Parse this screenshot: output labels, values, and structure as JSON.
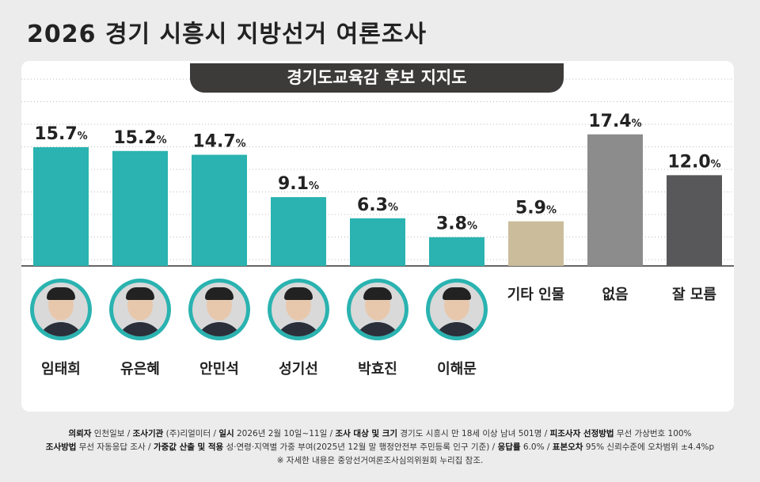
{
  "title": "2026 경기 시흥시 지방선거 여론조사",
  "subtitle": "경기도교육감 후보 지지도",
  "chart_data": {
    "type": "bar",
    "title": "경기도교육감 후보 지지도",
    "categories": [
      "임태희",
      "유은혜",
      "안민석",
      "성기선",
      "박효진",
      "이해문",
      "기타 인물",
      "없음",
      "잘 모름"
    ],
    "values": [
      15.7,
      15.2,
      14.7,
      9.1,
      6.3,
      3.8,
      5.9,
      17.4,
      12.0
    ],
    "unit": "%",
    "colors": [
      "#2ab3b0",
      "#2ab3b0",
      "#2ab3b0",
      "#2ab3b0",
      "#2ab3b0",
      "#2ab3b0",
      "#cbbd9c",
      "#8c8c8c",
      "#58585a"
    ],
    "ylim": [
      0,
      20
    ],
    "grid": true
  },
  "footer": {
    "line1": [
      [
        "의뢰자",
        " 인천일보 / "
      ],
      [
        "조사기관",
        " (주)리얼미터 / "
      ],
      [
        "일시",
        " 2026년 2월 10일~11일 / "
      ],
      [
        "조사 대상 및 크기",
        " 경기도 시흥시 만 18세 이상 남녀 501명  / "
      ],
      [
        "피조사자 선정방법",
        " 무선 가상번호 100%"
      ]
    ],
    "line2": [
      [
        "조사방법",
        " 무선 자동응답 조사 / "
      ],
      [
        "가중값 산출 및 적용",
        " 성·연령·지역별 가중 부여(2025년 12월 말 행정안전부 주민등록 인구 기준) / "
      ],
      [
        "응답률",
        " 6.0% / "
      ],
      [
        "표본오차",
        "  95% 신뢰수준에 오차범위 ±4.4%p"
      ]
    ],
    "line3": "※ 자세한 내용은 중앙선거여론조사심의위원회 누리집 참조."
  }
}
